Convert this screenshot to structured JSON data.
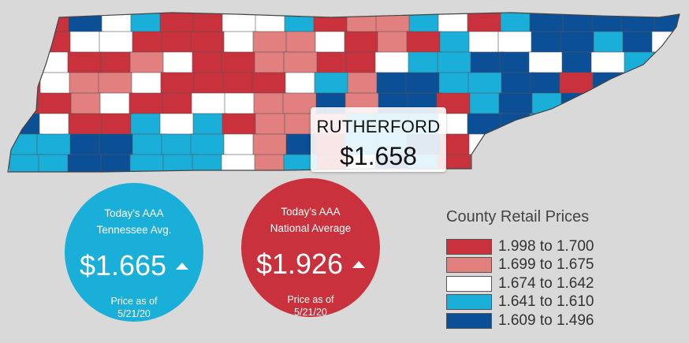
{
  "tooltip": {
    "county": "RUTHERFORD",
    "price": "$1.658"
  },
  "state_avg": {
    "label_line1": "Today's AAA",
    "label_line2": "Tennessee Avg.",
    "price": "$1.665",
    "trend": "up",
    "asof_line1": "Price as of",
    "asof_line2": "5/21/20"
  },
  "national_avg": {
    "label_line1": "Today's AAA",
    "label_line2": "National Average",
    "price": "$1.926",
    "trend": "up",
    "asof_line1": "Price as of",
    "asof_line2": "5/21/20"
  },
  "legend": {
    "title": "County Retail Prices",
    "ranges": [
      {
        "label": "1.998 to 1.700",
        "color": "#c9323c"
      },
      {
        "label": "1.699 to 1.675",
        "color": "#e27f7f"
      },
      {
        "label": "1.674 to 1.642",
        "color": "#ffffff"
      },
      {
        "label": "1.641 to 1.610",
        "color": "#1aafd8"
      },
      {
        "label": "1.609 to 1.496",
        "color": "#0b4f96"
      }
    ]
  },
  "map": {
    "state": "Tennessee",
    "colors": [
      "#c9323c",
      "#e27f7f",
      "#ffffff",
      "#1aafd8",
      "#0b4f96"
    ]
  }
}
